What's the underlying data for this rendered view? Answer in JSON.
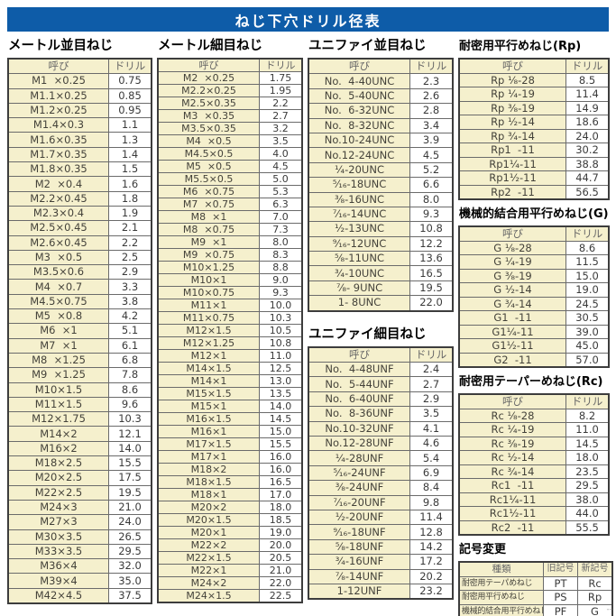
{
  "title": "ねじ下穴ドリル径表",
  "colors": {
    "banner_blue": "#0E5CA8",
    "cell_cream": "#F5F0CD"
  },
  "col_headers": {
    "name": "呼び",
    "drill": "ドリル"
  },
  "sections": {
    "metric_coarse_heading": "メートル並目ねじ",
    "metric_fine_heading": "メートル細目ねじ",
    "unified_coarse_heading": "ユニファイ並目ねじ",
    "unified_fine_heading": "ユニファイ細目ねじ",
    "rp_heading": "耐密用平行めねじ(Rp)",
    "g_heading": "機械的結合用平行めねじ(G)",
    "rc_heading": "耐密用テーパーめねじ(Rc)",
    "symbol_heading": "記号変更"
  },
  "tables": {
    "metric_coarse": {
      "rows": [
        [
          "M1  ×0.25",
          "0.75"
        ],
        [
          "M1.1×0.25",
          "0.85"
        ],
        [
          "M1.2×0.25",
          "0.95"
        ],
        [
          "M1.4×0.3",
          "1.1"
        ],
        [
          "M1.6×0.35",
          "1.3"
        ],
        [
          "M1.7×0.35",
          "1.4"
        ],
        [
          "M1.8×0.35",
          "1.5"
        ],
        [
          "M2  ×0.4",
          "1.6"
        ],
        [
          "M2.2×0.45",
          "1.8"
        ],
        [
          "M2.3×0.4",
          "1.9"
        ],
        [
          "M2.5×0.45",
          "2.1"
        ],
        [
          "M2.6×0.45",
          "2.2"
        ],
        [
          "M3  ×0.5",
          "2.5"
        ],
        [
          "M3.5×0.6",
          "2.9"
        ],
        [
          "M4  ×0.7",
          "3.3"
        ],
        [
          "M4.5×0.75",
          "3.8"
        ],
        [
          "M5  ×0.8",
          "4.2"
        ],
        [
          "M6  ×1",
          "5.1"
        ],
        [
          "M7  ×1",
          "6.1"
        ],
        [
          "M8  ×1.25",
          "6.8"
        ],
        [
          "M9  ×1.25",
          "7.8"
        ],
        [
          "M10×1.5",
          "8.6"
        ],
        [
          "M11×1.5",
          "9.6"
        ],
        [
          "M12×1.75",
          "10.3"
        ],
        [
          "M14×2",
          "12.1"
        ],
        [
          "M16×2",
          "14.0"
        ],
        [
          "M18×2.5",
          "15.5"
        ],
        [
          "M20×2.5",
          "17.5"
        ],
        [
          "M22×2.5",
          "19.5"
        ],
        [
          "M24×3",
          "21.0"
        ],
        [
          "M27×3",
          "24.0"
        ],
        [
          "M30×3.5",
          "26.5"
        ],
        [
          "M33×3.5",
          "29.5"
        ],
        [
          "M36×4",
          "32.0"
        ],
        [
          "M39×4",
          "35.0"
        ],
        [
          "M42×4.5",
          "37.5"
        ]
      ]
    },
    "metric_fine": {
      "rows": [
        [
          "M2  ×0.25",
          "1.75"
        ],
        [
          "M2.2×0.25",
          "1.95"
        ],
        [
          "M2.5×0.35",
          "2.2"
        ],
        [
          "M3  ×0.35",
          "2.7"
        ],
        [
          "M3.5×0.35",
          "3.2"
        ],
        [
          "M4  ×0.5",
          "3.5"
        ],
        [
          "M4.5×0.5",
          "4.0"
        ],
        [
          "M5  ×0.5",
          "4.5"
        ],
        [
          "M5.5×0.5",
          "5.0"
        ],
        [
          "M6  ×0.75",
          "5.3"
        ],
        [
          "M7  ×0.75",
          "6.3"
        ],
        [
          "M8  ×1",
          "7.0"
        ],
        [
          "M8  ×0.75",
          "7.3"
        ],
        [
          "M9  ×1",
          "8.0"
        ],
        [
          "M9  ×0.75",
          "8.3"
        ],
        [
          "M10×1.25",
          "8.8"
        ],
        [
          "M10×1",
          "9.0"
        ],
        [
          "M10×0.75",
          "9.3"
        ],
        [
          "M11×1",
          "10.0"
        ],
        [
          "M11×0.75",
          "10.3"
        ],
        [
          "M12×1.5",
          "10.5"
        ],
        [
          "M12×1.25",
          "10.8"
        ],
        [
          "M12×1",
          "11.0"
        ],
        [
          "M14×1.5",
          "12.5"
        ],
        [
          "M14×1",
          "13.0"
        ],
        [
          "M15×1.5",
          "13.5"
        ],
        [
          "M15×1",
          "14.0"
        ],
        [
          "M16×1.5",
          "14.5"
        ],
        [
          "M16×1",
          "15.0"
        ],
        [
          "M17×1.5",
          "15.5"
        ],
        [
          "M17×1",
          "16.0"
        ],
        [
          "M18×2",
          "16.0"
        ],
        [
          "M18×1.5",
          "16.5"
        ],
        [
          "M18×1",
          "17.0"
        ],
        [
          "M20×2",
          "18.0"
        ],
        [
          "M20×1.5",
          "18.5"
        ],
        [
          "M20×1",
          "19.0"
        ],
        [
          "M22×2",
          "20.0"
        ],
        [
          "M22×1.5",
          "20.5"
        ],
        [
          "M22×1",
          "21.0"
        ],
        [
          "M24×2",
          "22.0"
        ],
        [
          "M24×1.5",
          "22.5"
        ]
      ]
    },
    "unified_coarse": {
      "rows": [
        [
          "No.  4-40UNC",
          "2.3"
        ],
        [
          "No.  5-40UNC",
          "2.6"
        ],
        [
          "No.  6-32UNC",
          "2.8"
        ],
        [
          "No.  8-32UNC",
          "3.4"
        ],
        [
          "No.10-24UNC",
          "3.9"
        ],
        [
          "No.12-24UNC",
          "4.5"
        ],
        [
          "¹⁄₄-20UNC",
          "5.2"
        ],
        [
          "⁵⁄₁₆-18UNC",
          "6.6"
        ],
        [
          "³⁄₈-16UNC",
          "8.0"
        ],
        [
          "⁷⁄₁₆-14UNC",
          "9.3"
        ],
        [
          "¹⁄₂-13UNC",
          "10.8"
        ],
        [
          "⁹⁄₁₆-12UNC",
          "12.2"
        ],
        [
          "⁵⁄₈-11UNC",
          "13.6"
        ],
        [
          "³⁄₄-10UNC",
          "16.5"
        ],
        [
          "⁷⁄₈- 9UNC",
          "19.5"
        ],
        [
          "1- 8UNC",
          "22.0"
        ]
      ]
    },
    "unified_fine": {
      "rows": [
        [
          "No.  4-48UNF",
          "2.4"
        ],
        [
          "No.  5-44UNF",
          "2.7"
        ],
        [
          "No.  6-40UNF",
          "2.9"
        ],
        [
          "No.  8-36UNF",
          "3.5"
        ],
        [
          "No.10-32UNF",
          "4.1"
        ],
        [
          "No.12-28UNF",
          "4.6"
        ],
        [
          "¹⁄₄-28UNF",
          "5.4"
        ],
        [
          "⁵⁄₁₆-24UNF",
          "6.9"
        ],
        [
          "³⁄₈-24UNF",
          "8.4"
        ],
        [
          "⁷⁄₁₆-20UNF",
          "9.8"
        ],
        [
          "¹⁄₂-20UNF",
          "11.4"
        ],
        [
          "⁹⁄₁₆-18UNF",
          "12.8"
        ],
        [
          "⁵⁄₈-18UNF",
          "14.2"
        ],
        [
          "³⁄₄-16UNF",
          "17.2"
        ],
        [
          "⁷⁄₈-14UNF",
          "20.2"
        ],
        [
          "1-12UNF",
          "23.2"
        ]
      ]
    },
    "rp": {
      "rows": [
        [
          "Rp ¹⁄₈-28",
          "8.5"
        ],
        [
          "Rp ¹⁄₄-19",
          "11.4"
        ],
        [
          "Rp ³⁄₈-19",
          "14.9"
        ],
        [
          "Rp ¹⁄₂-14",
          "18.6"
        ],
        [
          "Rp ³⁄₄-14",
          "24.0"
        ],
        [
          "Rp1  -11",
          "30.2"
        ],
        [
          "Rp1¹⁄₄-11",
          "38.8"
        ],
        [
          "Rp1¹⁄₂-11",
          "44.7"
        ],
        [
          "Rp2  -11",
          "56.5"
        ]
      ]
    },
    "g": {
      "rows": [
        [
          "G ¹⁄₈-28",
          "8.6"
        ],
        [
          "G ¹⁄₄-19",
          "11.5"
        ],
        [
          "G ³⁄₈-19",
          "15.0"
        ],
        [
          "G ¹⁄₂-14",
          "19.0"
        ],
        [
          "G ³⁄₄-14",
          "24.5"
        ],
        [
          "G1  -11",
          "30.5"
        ],
        [
          "G1¹⁄₄-11",
          "39.0"
        ],
        [
          "G1¹⁄₂-11",
          "45.0"
        ],
        [
          "G2  -11",
          "57.0"
        ]
      ]
    },
    "rc": {
      "rows": [
        [
          "Rc ¹⁄₈-28",
          "8.2"
        ],
        [
          "Rc ¹⁄₄-19",
          "11.0"
        ],
        [
          "Rc ³⁄₈-19",
          "14.5"
        ],
        [
          "Rc ¹⁄₂-14",
          "18.0"
        ],
        [
          "Rc ³⁄₄-14",
          "23.5"
        ],
        [
          "Rc1  -11",
          "29.5"
        ],
        [
          "Rc1¹⁄₄-11",
          "38.0"
        ],
        [
          "Rc1¹⁄₂-11",
          "44.0"
        ],
        [
          "Rc2  -11",
          "55.5"
        ]
      ]
    },
    "symbol_change": {
      "headers": [
        "種類",
        "旧記号",
        "新記号"
      ],
      "rows": [
        [
          "耐密用テーパめねじ",
          "PT",
          "Rc"
        ],
        [
          "耐密用平行めねじ",
          "PS",
          "Rp"
        ],
        [
          "機械的結合用平行めねじ",
          "PF",
          "G"
        ]
      ]
    }
  },
  "footer_mark": "--"
}
